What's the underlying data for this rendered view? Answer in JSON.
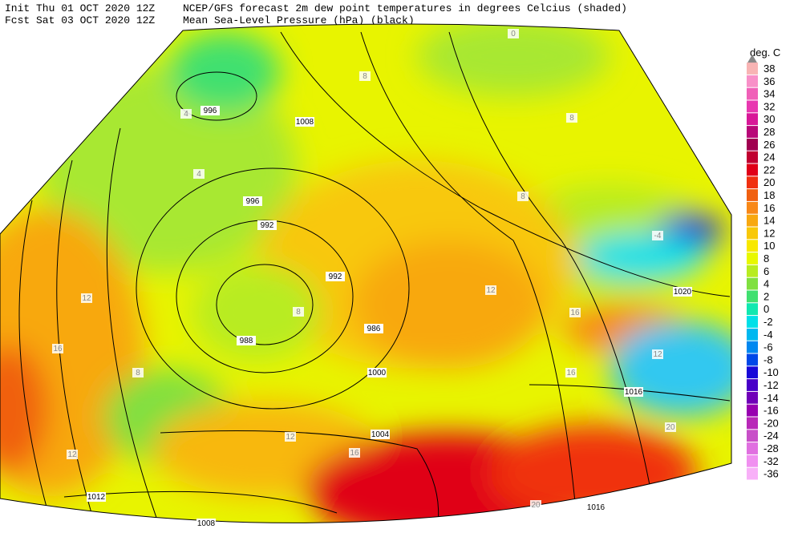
{
  "header": {
    "init": "Init  Thu 01 OCT 2020 12Z",
    "fcst": "Fcst Sat 03 OCT 2020 12Z",
    "line1": "NCEP/GFS forecast 2m dew point temperatures in degrees Celcius (shaded)",
    "line2": "Mean Sea-Level Pressure (hPa) (black)"
  },
  "legend": {
    "title": "deg. C",
    "levels": [
      "38",
      "36",
      "34",
      "32",
      "30",
      "28",
      "26",
      "24",
      "22",
      "20",
      "18",
      "16",
      "14",
      "12",
      "10",
      "8",
      "6",
      "4",
      "2",
      "0",
      "-2",
      "-4",
      "-6",
      "-8",
      "-10",
      "-12",
      "-14",
      "-16",
      "-20",
      "-24",
      "-28",
      "-32",
      "-36"
    ],
    "colors": [
      "#f8b4b4",
      "#f890c8",
      "#f060b8",
      "#e838b0",
      "#d81898",
      "#b80878",
      "#a00050",
      "#c00030",
      "#e00018",
      "#f03010",
      "#f06010",
      "#f88818",
      "#f8a810",
      "#f8c808",
      "#f8e800",
      "#e8f800",
      "#b8ec20",
      "#80e040",
      "#40e070",
      "#10e8b0",
      "#00e0e8",
      "#00b8f0",
      "#0088f0",
      "#0048e8",
      "#1808d8",
      "#4800c8",
      "#7000b8",
      "#9800b0",
      "#b828b8",
      "#c850c8",
      "#e070e0",
      "#f090f0",
      "#f8b0f8"
    ]
  },
  "map": {
    "pressure_labels": [
      "996",
      "1008",
      "996",
      "992",
      "992",
      "988",
      "986",
      "1000",
      "1004",
      "1012",
      "1008",
      "1016",
      "1016",
      "1020"
    ],
    "dewpoint_labels": [
      "8",
      "4",
      "4",
      "8",
      "8",
      "12",
      "16",
      "12",
      "12",
      "16",
      "20",
      "20",
      "0",
      "-4",
      "8",
      "12",
      "16",
      "8",
      "12",
      "16"
    ]
  }
}
